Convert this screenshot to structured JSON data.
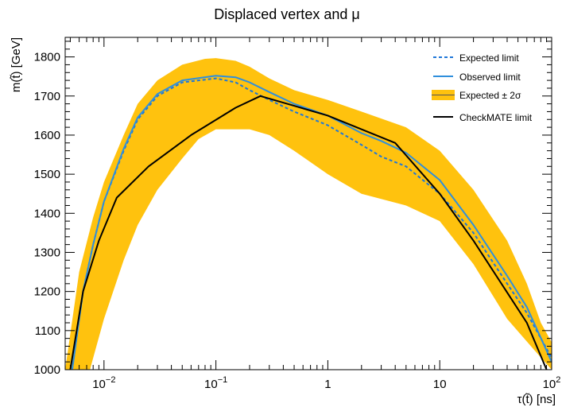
{
  "chart_data": {
    "type": "line",
    "title": "Displaced vertex and μ",
    "xlabel": "τ(t̃) [ns]",
    "ylabel": "m(t̃) [GeV]",
    "xscale": "log",
    "xlim": [
      0.0045,
      100
    ],
    "ylim": [
      1000,
      1850
    ],
    "x_ticks": [
      {
        "value": 0.01,
        "base": "10",
        "exp": "−2"
      },
      {
        "value": 0.1,
        "base": "10",
        "exp": "−1"
      },
      {
        "value": 1,
        "base": "1",
        "exp": ""
      },
      {
        "value": 10,
        "base": "10",
        "exp": ""
      },
      {
        "value": 100,
        "base": "10",
        "exp": "2"
      }
    ],
    "y_ticks": [
      1000,
      1100,
      1200,
      1300,
      1400,
      1500,
      1600,
      1700,
      1800
    ],
    "grid": false,
    "legend_position": "top-right",
    "legend": [
      {
        "key": "expected",
        "label": "Expected limit"
      },
      {
        "key": "observed",
        "label": "Observed limit"
      },
      {
        "key": "band",
        "label": "Expected ± 2σ"
      },
      {
        "key": "checkmate",
        "label": "CheckMATE limit"
      }
    ],
    "colors": {
      "expected": "#1f77d8",
      "observed": "#2f8fdc",
      "band": "#ffc20e",
      "checkmate": "#000000"
    },
    "series": [
      {
        "key": "expected",
        "name": "Expected limit",
        "style": "dashed",
        "points": [
          [
            0.0052,
            1000
          ],
          [
            0.0065,
            1200
          ],
          [
            0.008,
            1320
          ],
          [
            0.01,
            1430
          ],
          [
            0.015,
            1560
          ],
          [
            0.02,
            1640
          ],
          [
            0.03,
            1700
          ],
          [
            0.05,
            1735
          ],
          [
            0.1,
            1745
          ],
          [
            0.15,
            1735
          ],
          [
            0.2,
            1715
          ],
          [
            0.3,
            1690
          ],
          [
            0.5,
            1660
          ],
          [
            1,
            1625
          ],
          [
            2,
            1575
          ],
          [
            3,
            1545
          ],
          [
            5,
            1520
          ],
          [
            10,
            1450
          ],
          [
            20,
            1350
          ],
          [
            40,
            1220
          ],
          [
            60,
            1145
          ],
          [
            100,
            1030
          ]
        ]
      },
      {
        "key": "observed",
        "name": "Observed limit",
        "style": "solid",
        "points": [
          [
            0.0052,
            1000
          ],
          [
            0.0065,
            1200
          ],
          [
            0.008,
            1320
          ],
          [
            0.01,
            1430
          ],
          [
            0.015,
            1565
          ],
          [
            0.02,
            1645
          ],
          [
            0.03,
            1705
          ],
          [
            0.05,
            1740
          ],
          [
            0.1,
            1752
          ],
          [
            0.15,
            1748
          ],
          [
            0.2,
            1735
          ],
          [
            0.3,
            1710
          ],
          [
            0.5,
            1680
          ],
          [
            1,
            1650
          ],
          [
            2,
            1605
          ],
          [
            3,
            1585
          ],
          [
            5,
            1555
          ],
          [
            10,
            1485
          ],
          [
            20,
            1370
          ],
          [
            40,
            1240
          ],
          [
            60,
            1160
          ],
          [
            100,
            1020
          ]
        ]
      },
      {
        "key": "checkmate",
        "name": "CheckMATE limit",
        "style": "solid",
        "points": [
          [
            0.005,
            1000
          ],
          [
            0.0065,
            1200
          ],
          [
            0.009,
            1330
          ],
          [
            0.013,
            1440
          ],
          [
            0.025,
            1520
          ],
          [
            0.06,
            1600
          ],
          [
            0.15,
            1670
          ],
          [
            0.25,
            1700
          ],
          [
            0.5,
            1675
          ],
          [
            1,
            1650
          ],
          [
            4,
            1580
          ],
          [
            10,
            1450
          ],
          [
            20,
            1330
          ],
          [
            60,
            1120
          ],
          [
            90,
            1000
          ]
        ]
      }
    ],
    "band": {
      "key": "band",
      "name": "Expected ± 2σ",
      "upper": [
        [
          0.0045,
          1000
        ],
        [
          0.006,
          1250
        ],
        [
          0.008,
          1390
        ],
        [
          0.01,
          1480
        ],
        [
          0.015,
          1600
        ],
        [
          0.02,
          1680
        ],
        [
          0.03,
          1740
        ],
        [
          0.05,
          1780
        ],
        [
          0.08,
          1795
        ],
        [
          0.1,
          1797
        ],
        [
          0.15,
          1790
        ],
        [
          0.2,
          1775
        ],
        [
          0.3,
          1745
        ],
        [
          0.5,
          1715
        ],
        [
          1,
          1690
        ],
        [
          2,
          1660
        ],
        [
          5,
          1620
        ],
        [
          10,
          1560
        ],
        [
          20,
          1460
        ],
        [
          40,
          1330
        ],
        [
          60,
          1220
        ],
        [
          80,
          1120
        ],
        [
          100,
          1070
        ]
      ],
      "lower": [
        [
          100,
          1000
        ],
        [
          70,
          1050
        ],
        [
          40,
          1130
        ],
        [
          20,
          1270
        ],
        [
          10,
          1380
        ],
        [
          5,
          1420
        ],
        [
          2,
          1450
        ],
        [
          1,
          1500
        ],
        [
          0.5,
          1560
        ],
        [
          0.3,
          1600
        ],
        [
          0.2,
          1615
        ],
        [
          0.1,
          1615
        ],
        [
          0.07,
          1590
        ],
        [
          0.05,
          1540
        ],
        [
          0.03,
          1460
        ],
        [
          0.02,
          1370
        ],
        [
          0.015,
          1280
        ],
        [
          0.01,
          1130
        ],
        [
          0.008,
          1030
        ],
        [
          0.0075,
          1000
        ]
      ]
    }
  }
}
